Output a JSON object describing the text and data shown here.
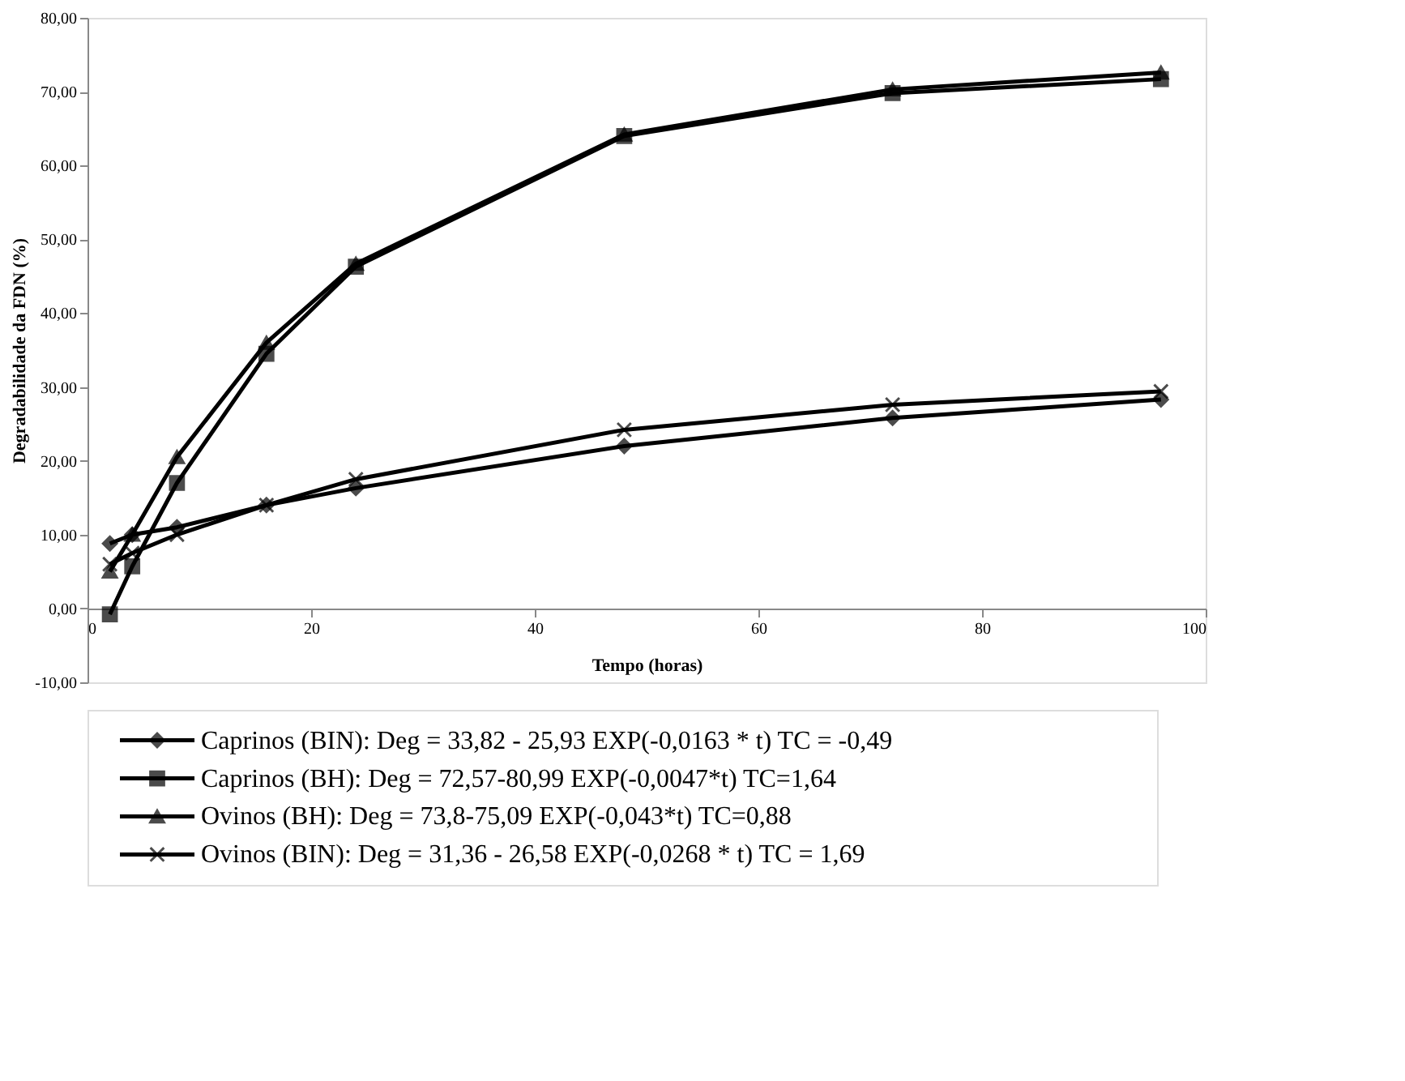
{
  "chart_data": {
    "type": "line",
    "xlabel": "Tempo (horas)",
    "ylabel": "Degradabilidade da FDN (%)",
    "x": [
      2,
      4,
      8,
      16,
      24,
      48,
      72,
      96
    ],
    "series": [
      {
        "name": "Caprinos (BIN): Deg = 33,82 - 25,93 EXP(-0,0163  * t) TC = -0,49",
        "color": "#000000",
        "marker": "diamond",
        "values": [
          8.8,
          10.0,
          11.0,
          14.0,
          16.3,
          22.0,
          25.8,
          28.3
        ]
      },
      {
        "name": "Caprinos (BH): Deg = 72,57-80,99 EXP(-0,0047*t) TC=1,64",
        "color": "#000000",
        "marker": "square",
        "values": [
          -0.8,
          5.7,
          17.0,
          34.5,
          46.3,
          64.0,
          69.8,
          71.7
        ]
      },
      {
        "name": "Ovinos (BH): Deg = 73,8-75,09 EXP(-0,043*t) TC=0,88",
        "color": "#000000",
        "marker": "triangle",
        "values": [
          5.0,
          10.0,
          20.5,
          36.0,
          46.7,
          64.2,
          70.3,
          72.6
        ]
      },
      {
        "name": "Ovinos (BIN): Deg = 31,36 - 26,58 EXP(-0,0268 * t) TC = 1,69",
        "color": "#000000",
        "marker": "cross",
        "values": [
          6.0,
          7.5,
          10.0,
          14.0,
          17.5,
          24.2,
          27.6,
          29.4
        ]
      }
    ],
    "xlim": [
      0,
      100
    ],
    "xticks": [
      0,
      20,
      40,
      60,
      80,
      100
    ],
    "ylim": [
      -10,
      80
    ],
    "yticks": [
      {
        "value": -10,
        "label": "-10,00"
      },
      {
        "value": 0,
        "label": "0,00"
      },
      {
        "value": 10,
        "label": "10,00"
      },
      {
        "value": 20,
        "label": "20,00"
      },
      {
        "value": 30,
        "label": "30,00"
      },
      {
        "value": 40,
        "label": "40,00"
      },
      {
        "value": 50,
        "label": "50,00"
      },
      {
        "value": 60,
        "label": "60,00"
      },
      {
        "value": 70,
        "label": "70,00"
      },
      {
        "value": 80,
        "label": "80,00"
      }
    ],
    "grid": false,
    "legend": "bottom",
    "line_style": "solid"
  }
}
